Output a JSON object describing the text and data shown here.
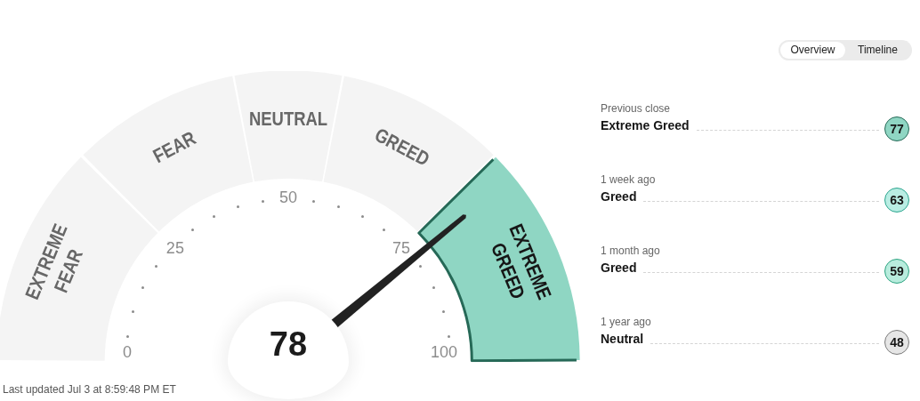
{
  "chart_data": [
    {
      "type": "donut",
      "categories": [
        "EXTREME FEAR",
        "FEAR",
        "NEUTRAL",
        "GREED",
        "EXTREME GREED"
      ],
      "values": [
        25,
        19,
        12,
        19,
        25
      ],
      "colors": [
        "#f4f4f4",
        "#f4f4f4",
        "#f4f4f4",
        "#f4f4f4",
        "#8fd6c3"
      ],
      "needle": "EXTREME GREED",
      "annotations": [
        "78",
        "0",
        "25",
        "50",
        "75",
        "100",
        "Last updated Jul 3 at 8:59:48 PM ET"
      ]
    },
    {
      "type": "other",
      "categories": [
        "Previous close",
        "1 week ago",
        "1 month ago",
        "1 year ago"
      ],
      "values": [
        77,
        63,
        59,
        48
      ],
      "colors": [
        "#8fd6c3",
        "#b9ede3",
        "#b8ecdd",
        "#e6e6e6"
      ],
      "data_labels": true,
      "annotations": [
        "Extreme Greed",
        "Greed",
        "Greed",
        "Neutral",
        "Overview",
        "Timeline"
      ]
    }
  ]
}
